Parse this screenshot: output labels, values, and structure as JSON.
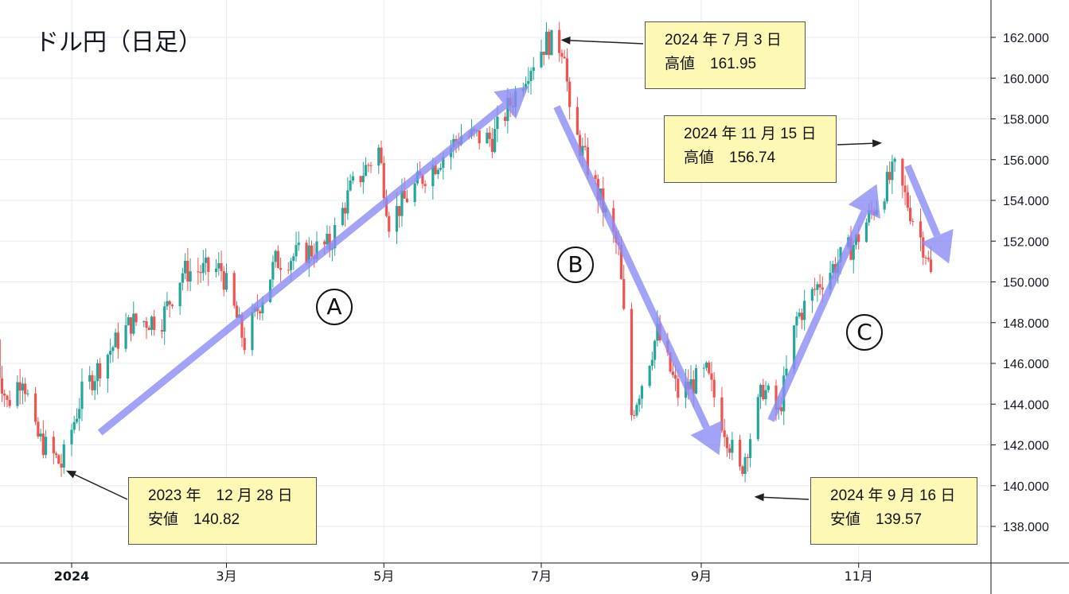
{
  "title": "ドル円（日足）",
  "chart_data": {
    "type": "candlestick",
    "title": "ドル円（日足）",
    "ylim": [
      136.8,
      163.0
    ],
    "y_ticks": [
      "138.000",
      "140.000",
      "142.000",
      "144.000",
      "146.000",
      "148.000",
      "150.000",
      "152.000",
      "154.000",
      "156.000",
      "158.000",
      "160.000",
      "162.000"
    ],
    "x_ticks": [
      "2024",
      "3月",
      "5月",
      "7月",
      "9月",
      "11月"
    ],
    "colors": {
      "up": "#26a69a",
      "down": "#ef5350",
      "arrow": "#8c8cf5",
      "grid": "#e6ebf2"
    },
    "anchors": [
      {
        "date": "2023-12-01",
        "price": 147.2
      },
      {
        "date": "2023-12-07",
        "price": 144.0
      },
      {
        "date": "2023-12-13",
        "price": 145.5
      },
      {
        "date": "2023-12-18",
        "price": 142.5
      },
      {
        "date": "2023-12-28",
        "price": 141.0
      },
      {
        "date": "2024-01-05",
        "price": 144.5
      },
      {
        "date": "2024-01-15",
        "price": 146.5
      },
      {
        "date": "2024-01-24",
        "price": 148.0
      },
      {
        "date": "2024-02-05",
        "price": 148.2
      },
      {
        "date": "2024-02-13",
        "price": 150.5
      },
      {
        "date": "2024-02-28",
        "price": 150.6
      },
      {
        "date": "2024-03-08",
        "price": 147.0
      },
      {
        "date": "2024-03-20",
        "price": 151.0
      },
      {
        "date": "2024-04-10",
        "price": 151.8
      },
      {
        "date": "2024-04-18",
        "price": 154.5
      },
      {
        "date": "2024-04-29",
        "price": 156.5
      },
      {
        "date": "2024-05-03",
        "price": 153.0
      },
      {
        "date": "2024-05-15",
        "price": 155.0
      },
      {
        "date": "2024-05-31",
        "price": 157.2
      },
      {
        "date": "2024-06-12",
        "price": 157.0
      },
      {
        "date": "2024-06-26",
        "price": 160.5
      },
      {
        "date": "2024-07-03",
        "price": 161.8
      },
      {
        "date": "2024-07-10",
        "price": 161.5
      },
      {
        "date": "2024-07-12",
        "price": 158.0
      },
      {
        "date": "2024-07-24",
        "price": 154.0
      },
      {
        "date": "2024-07-31",
        "price": 151.5
      },
      {
        "date": "2024-08-05",
        "price": 143.5
      },
      {
        "date": "2024-08-15",
        "price": 147.5
      },
      {
        "date": "2024-08-23",
        "price": 144.5
      },
      {
        "date": "2024-09-03",
        "price": 145.5
      },
      {
        "date": "2024-09-16",
        "price": 140.6
      },
      {
        "date": "2024-09-25",
        "price": 144.8
      },
      {
        "date": "2024-10-01",
        "price": 143.5
      },
      {
        "date": "2024-10-08",
        "price": 148.2
      },
      {
        "date": "2024-10-17",
        "price": 150.0
      },
      {
        "date": "2024-10-31",
        "price": 152.0
      },
      {
        "date": "2024-11-15",
        "price": 155.5
      },
      {
        "date": "2024-11-27",
        "price": 151.5
      },
      {
        "date": "2024-11-29",
        "price": 150.3
      }
    ],
    "annotations": [
      {
        "date": "2023-12-28",
        "price": 140.82,
        "text": [
          "2023 年　12 月 28 日",
          "安値　140.82"
        ]
      },
      {
        "date": "2024-07-03",
        "price": 161.95,
        "text": [
          "2024 年 7 月 3 日",
          "高値　161.95"
        ]
      },
      {
        "date": "2024-09-16",
        "price": 139.57,
        "text": [
          "2024 年 9 月 16 日",
          "安値　139.57"
        ]
      },
      {
        "date": "2024-11-15",
        "price": 156.74,
        "text": [
          "2024 年 11 月 15 日",
          "高値　156.74"
        ]
      }
    ],
    "trend_labels": [
      "Ⓐ",
      "Ⓑ",
      "Ⓒ"
    ]
  }
}
